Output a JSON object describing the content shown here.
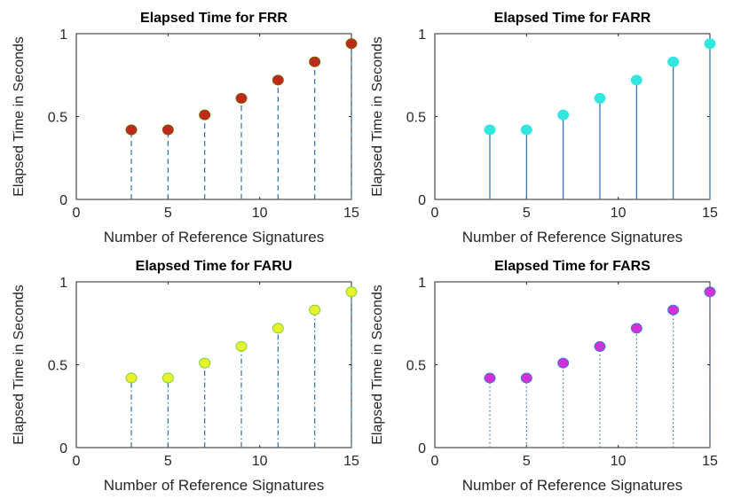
{
  "chart_data": [
    {
      "type": "stem",
      "title": "Elapsed Time for FRR",
      "xlabel": "Number of Reference Signatures",
      "ylabel": "Elapsed Time in Seconds",
      "xlim": [
        0,
        15
      ],
      "ylim": [
        0,
        1
      ],
      "xticks": [
        "0",
        "5",
        "10",
        "15"
      ],
      "yticks": [
        "0",
        "0.5",
        "1"
      ],
      "x": [
        3,
        5,
        7,
        9,
        11,
        13,
        15
      ],
      "y": [
        0.42,
        0.42,
        0.51,
        0.61,
        0.72,
        0.83,
        0.94
      ],
      "line_style": "dashed",
      "marker_color": "#c0281c",
      "marker_edge": "#7a6000",
      "stem_color": "#2a6fb5"
    },
    {
      "type": "stem",
      "title": "Elapsed Time for FARR",
      "xlabel": "Number of Reference Signatures",
      "ylabel": "Elapsed Time in Seconds",
      "xlim": [
        0,
        15
      ],
      "ylim": [
        0,
        1
      ],
      "xticks": [
        "0",
        "5",
        "10",
        "15"
      ],
      "yticks": [
        "0",
        "0.5",
        "1"
      ],
      "x": [
        3,
        5,
        7,
        9,
        11,
        13,
        15
      ],
      "y": [
        0.42,
        0.42,
        0.51,
        0.61,
        0.72,
        0.83,
        0.94
      ],
      "line_style": "solid",
      "marker_color": "#33e6df",
      "marker_edge": "#33e6df",
      "stem_color": "#2a6fb5"
    },
    {
      "type": "stem",
      "title": "Elapsed Time for FARU",
      "xlabel": "Number of Reference Signatures",
      "ylabel": "Elapsed Time in Seconds",
      "xlim": [
        0,
        15
      ],
      "ylim": [
        0,
        1
      ],
      "xticks": [
        "0",
        "5",
        "10",
        "15"
      ],
      "yticks": [
        "0",
        "0.5",
        "1"
      ],
      "x": [
        3,
        5,
        7,
        9,
        11,
        13,
        15
      ],
      "y": [
        0.42,
        0.42,
        0.51,
        0.61,
        0.72,
        0.83,
        0.94
      ],
      "line_style": "dashdot",
      "marker_color": "#e8f22a",
      "marker_edge": "#7fd23a",
      "stem_color": "#2a6fb5"
    },
    {
      "type": "stem",
      "title": "Elapsed Time for FARS",
      "xlabel": "Number of Reference Signatures",
      "ylabel": "Elapsed Time in Seconds",
      "xlim": [
        0,
        15
      ],
      "ylim": [
        0,
        1
      ],
      "xticks": [
        "0",
        "5",
        "10",
        "15"
      ],
      "yticks": [
        "0",
        "0.5",
        "1"
      ],
      "x": [
        3,
        5,
        7,
        9,
        11,
        13,
        15
      ],
      "y": [
        0.42,
        0.42,
        0.51,
        0.61,
        0.72,
        0.83,
        0.94
      ],
      "line_style": "dotted",
      "marker_color": "#d52fd8",
      "marker_edge": "#3a7bd5",
      "stem_color": "#2a6fb5"
    }
  ]
}
